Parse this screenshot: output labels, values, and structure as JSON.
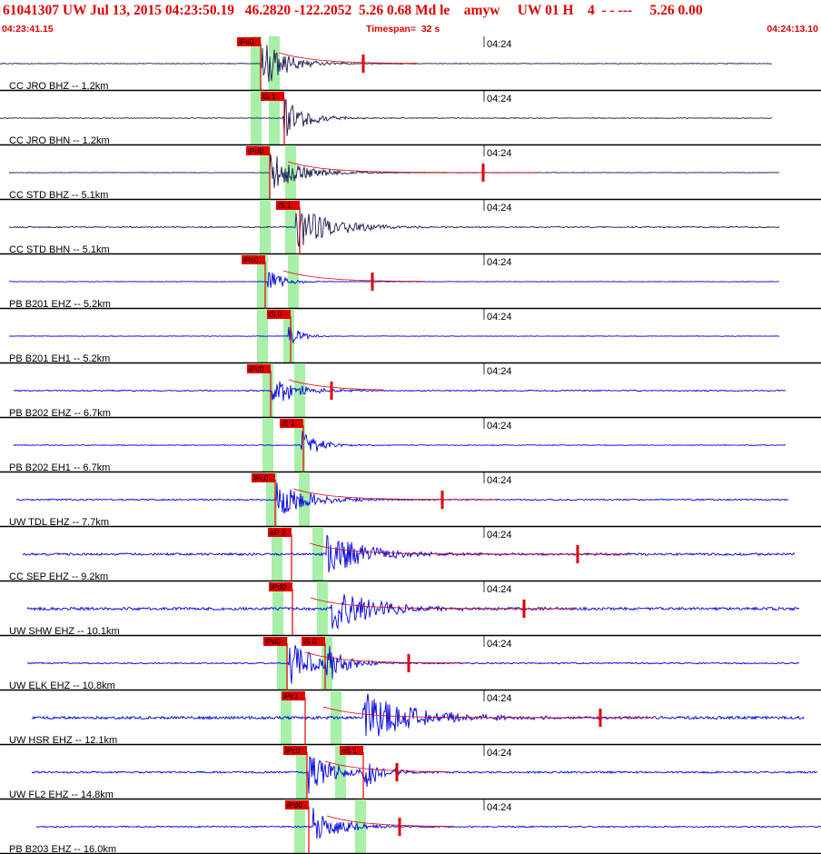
{
  "header": {
    "event_id": "61041307",
    "network": "UW",
    "date": "Jul 13, 2015",
    "origin_time": "04:23:50.19",
    "latitude": "46.2820",
    "longitude": "-122.2052",
    "depth": "5.26",
    "magnitude": "0.68",
    "mag_type": "Md",
    "flag": "le",
    "analyst": "amyw",
    "agency_version": "UW 01 H",
    "count": "4",
    "dashes": "- - ---",
    "tail1": "5.26",
    "tail2": "0.00",
    "start_time": "04:23:41.15",
    "timespan_label": "Timespan=",
    "timespan_value": "32 s",
    "end_time": "04:24:13.10"
  },
  "tick_label": "04:24",
  "colors": {
    "header_text": "#e00000",
    "trace_dark": "#1a1a50",
    "trace_blue": "#0000e0",
    "pick_box": "#e00000",
    "pick_line": "#e00000",
    "window_band": "#a8f0a8",
    "divider": "#000000"
  },
  "channels": [
    {
      "label": "CC JRO BHZ -- 1.2km",
      "color": "dark",
      "pick": "iPc0",
      "pick_x": 287,
      "band": 282,
      "band2": 302,
      "start_x": 0,
      "end_x": 850,
      "coda_x": 400,
      "amp": 28,
      "noise": 0.8,
      "burst": 288,
      "decay": 0.012
    },
    {
      "label": "CC JRO BHN -- 1.2km",
      "color": "dark",
      "pick": "iS 1",
      "pick_x": 313,
      "band": 282,
      "band2": 302,
      "start_x": 0,
      "end_x": 850,
      "coda_x": null,
      "amp": 24,
      "noise": 0.8,
      "burst": 312,
      "decay": 0.014
    },
    {
      "label": "CC STD BHZ -- 5.1km",
      "color": "dark",
      "pick": "iPd0",
      "pick_x": 297,
      "band": 292,
      "band2": 320,
      "start_x": 10,
      "end_x": 858,
      "coda_x": 532,
      "amp": 22,
      "noise": 0.6,
      "burst": 298,
      "decay": 0.01
    },
    {
      "label": "CC STD BHN -- 5.1km",
      "color": "dark",
      "pick": "iS 1",
      "pick_x": 330,
      "band": 292,
      "band2": 320,
      "start_x": 10,
      "end_x": 858,
      "coda_x": null,
      "amp": 24,
      "noise": 1.2,
      "burst": 326,
      "decay": 0.008
    },
    {
      "label": "PB B201 EHZ -- 5.2km",
      "color": "blue",
      "pick": "iPc0",
      "pick_x": 292,
      "band": 289,
      "band2": 323,
      "start_x": 10,
      "end_x": 858,
      "coda_x": 410,
      "amp": 14,
      "noise": 0.6,
      "burst": 295,
      "decay": 0.02
    },
    {
      "label": "PB B201 EH1 -- 5.2km",
      "color": "blue",
      "pick": "iS 0",
      "pick_x": 320,
      "band": 289,
      "band2": 318,
      "start_x": 10,
      "end_x": 858,
      "coda_x": null,
      "amp": 14,
      "noise": 0.6,
      "burst": 318,
      "decay": 0.025
    },
    {
      "label": "PB B202 EHZ -- 6.7km",
      "color": "blue",
      "pick": "iPc0",
      "pick_x": 298,
      "band": 295,
      "band2": 330,
      "start_x": 15,
      "end_x": 865,
      "coda_x": 365,
      "amp": 18,
      "noise": 1.2,
      "burst": 300,
      "decay": 0.012
    },
    {
      "label": "PB B202 EH1 -- 6.7km",
      "color": "blue",
      "pick": "iS 1",
      "pick_x": 334,
      "band": 295,
      "band2": 330,
      "start_x": 15,
      "end_x": 865,
      "coda_x": null,
      "amp": 18,
      "noise": 0.8,
      "burst": 332,
      "decay": 0.018
    },
    {
      "label": "UW TDL EHZ -- 7.7km",
      "color": "blue",
      "pick": "iPc0",
      "pick_x": 303,
      "band": 299,
      "band2": 335,
      "start_x": 18,
      "end_x": 868,
      "coda_x": 487,
      "amp": 22,
      "noise": 1.5,
      "burst": 305,
      "decay": 0.01
    },
    {
      "label": "CC SEP EHZ -- 9.2km",
      "color": "blue",
      "pick": "eP 2",
      "pick_x": 321,
      "band": 305,
      "band2": 350,
      "start_x": 25,
      "end_x": 875,
      "coda_x": 636,
      "amp": 26,
      "noise": 2.5,
      "burst": 360,
      "decay": 0.008
    },
    {
      "label": "UW SHW EHZ -- 10.1km",
      "color": "blue",
      "pick": "iPd0",
      "pick_x": 322,
      "band": 306,
      "band2": 355,
      "start_x": 30,
      "end_x": 880,
      "coda_x": 577,
      "amp": 28,
      "noise": 3.0,
      "burst": 365,
      "decay": 0.008
    },
    {
      "label": "UW ELK EHZ -- 10.8km",
      "color": "blue",
      "pick": "iPd0",
      "pick_x": 316,
      "pick2": "iS 0",
      "pick2_x": 358,
      "band": 311,
      "band2": 360,
      "start_x": 30,
      "end_x": 880,
      "coda_x": 450,
      "amp": 26,
      "noise": 1.5,
      "burst": 318,
      "decay": 0.012
    },
    {
      "label": "UW HSR EHZ -- 12.1km",
      "color": "blue",
      "pick": "iPc1",
      "pick_x": 336,
      "band": 315,
      "band2": 370,
      "start_x": 35,
      "end_x": 885,
      "coda_x": 661,
      "amp": 28,
      "noise": 3.0,
      "burst": 400,
      "decay": 0.006
    },
    {
      "label": "UW FL2 EHZ -- 14.8km",
      "color": "blue",
      "pick": "iPc0",
      "pick_x": 338,
      "pick2": "eS 1",
      "pick2_x": 400,
      "band": 332,
      "band2": 375,
      "start_x": 35,
      "end_x": 900,
      "coda_x": 437,
      "amp": 24,
      "noise": 2.0,
      "burst": 340,
      "decay": 0.012
    },
    {
      "label": "PB B203 EHZ -- 16.0km",
      "color": "blue",
      "pick": "iPd0",
      "pick_x": 340,
      "band": 330,
      "band2": 397,
      "start_x": 40,
      "end_x": 904,
      "coda_x": 440,
      "amp": 22,
      "noise": 1.5,
      "burst": 345,
      "decay": 0.012
    }
  ]
}
